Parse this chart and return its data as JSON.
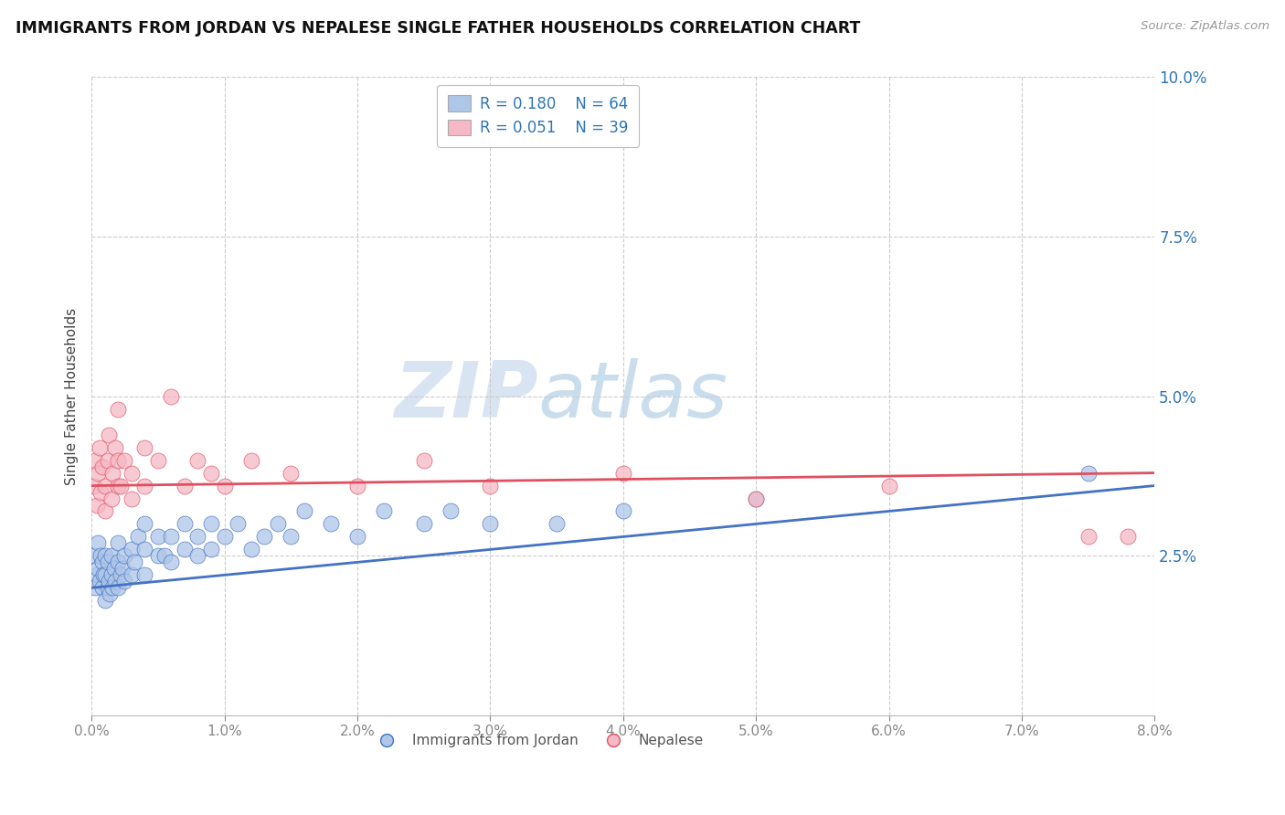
{
  "title": "IMMIGRANTS FROM JORDAN VS NEPALESE SINGLE FATHER HOUSEHOLDS CORRELATION CHART",
  "source": "Source: ZipAtlas.com",
  "ylabel": "Single Father Households",
  "legend_label_blue": "Immigrants from Jordan",
  "legend_label_pink": "Nepalese",
  "r_blue": 0.18,
  "n_blue": 64,
  "r_pink": 0.051,
  "n_pink": 39,
  "xmin": 0.0,
  "xmax": 0.08,
  "ymin": 0.0,
  "ymax": 0.1,
  "yticks": [
    0.025,
    0.05,
    0.075,
    0.1
  ],
  "xticks": [
    0.0,
    0.01,
    0.02,
    0.03,
    0.04,
    0.05,
    0.06,
    0.07,
    0.08
  ],
  "color_blue": "#aec6e8",
  "color_pink": "#f5b8c4",
  "line_color_blue": "#4472C4",
  "line_color_pink": "#E05060",
  "legend_text_color": "#2E75B6",
  "watermark_color": "#c8d8ea",
  "blue_points_x": [
    0.0002,
    0.0003,
    0.0004,
    0.0005,
    0.0005,
    0.0006,
    0.0007,
    0.0008,
    0.0008,
    0.0009,
    0.001,
    0.001,
    0.001,
    0.0012,
    0.0012,
    0.0013,
    0.0014,
    0.0015,
    0.0015,
    0.0016,
    0.0017,
    0.0018,
    0.002,
    0.002,
    0.002,
    0.0022,
    0.0023,
    0.0025,
    0.0025,
    0.003,
    0.003,
    0.0032,
    0.0035,
    0.004,
    0.004,
    0.004,
    0.005,
    0.005,
    0.0055,
    0.006,
    0.006,
    0.007,
    0.007,
    0.008,
    0.008,
    0.009,
    0.009,
    0.01,
    0.011,
    0.012,
    0.013,
    0.014,
    0.015,
    0.016,
    0.018,
    0.02,
    0.022,
    0.025,
    0.027,
    0.03,
    0.035,
    0.04,
    0.05,
    0.075
  ],
  "blue_points_y": [
    0.025,
    0.02,
    0.022,
    0.023,
    0.027,
    0.021,
    0.025,
    0.02,
    0.024,
    0.022,
    0.018,
    0.022,
    0.025,
    0.02,
    0.024,
    0.021,
    0.019,
    0.022,
    0.025,
    0.02,
    0.023,
    0.021,
    0.02,
    0.024,
    0.027,
    0.022,
    0.023,
    0.021,
    0.025,
    0.022,
    0.026,
    0.024,
    0.028,
    0.022,
    0.026,
    0.03,
    0.025,
    0.028,
    0.025,
    0.024,
    0.028,
    0.026,
    0.03,
    0.025,
    0.028,
    0.026,
    0.03,
    0.028,
    0.03,
    0.026,
    0.028,
    0.03,
    0.028,
    0.032,
    0.03,
    0.028,
    0.032,
    0.03,
    0.032,
    0.03,
    0.03,
    0.032,
    0.034,
    0.038
  ],
  "pink_points_x": [
    0.0002,
    0.0003,
    0.0004,
    0.0005,
    0.0006,
    0.0007,
    0.0008,
    0.001,
    0.001,
    0.0012,
    0.0013,
    0.0015,
    0.0016,
    0.0018,
    0.002,
    0.002,
    0.002,
    0.0022,
    0.0025,
    0.003,
    0.003,
    0.004,
    0.004,
    0.005,
    0.006,
    0.007,
    0.008,
    0.009,
    0.01,
    0.012,
    0.015,
    0.02,
    0.025,
    0.03,
    0.04,
    0.05,
    0.06,
    0.075,
    0.078
  ],
  "pink_points_y": [
    0.036,
    0.04,
    0.033,
    0.038,
    0.042,
    0.035,
    0.039,
    0.032,
    0.036,
    0.04,
    0.044,
    0.034,
    0.038,
    0.042,
    0.036,
    0.04,
    0.048,
    0.036,
    0.04,
    0.034,
    0.038,
    0.042,
    0.036,
    0.04,
    0.05,
    0.036,
    0.04,
    0.038,
    0.036,
    0.04,
    0.038,
    0.036,
    0.04,
    0.036,
    0.038,
    0.034,
    0.036,
    0.028,
    0.028
  ],
  "blue_line_x0": 0.0,
  "blue_line_y0": 0.02,
  "blue_line_x1": 0.08,
  "blue_line_y1": 0.036,
  "pink_line_x0": 0.0,
  "pink_line_y0": 0.036,
  "pink_line_x1": 0.08,
  "pink_line_y1": 0.038
}
